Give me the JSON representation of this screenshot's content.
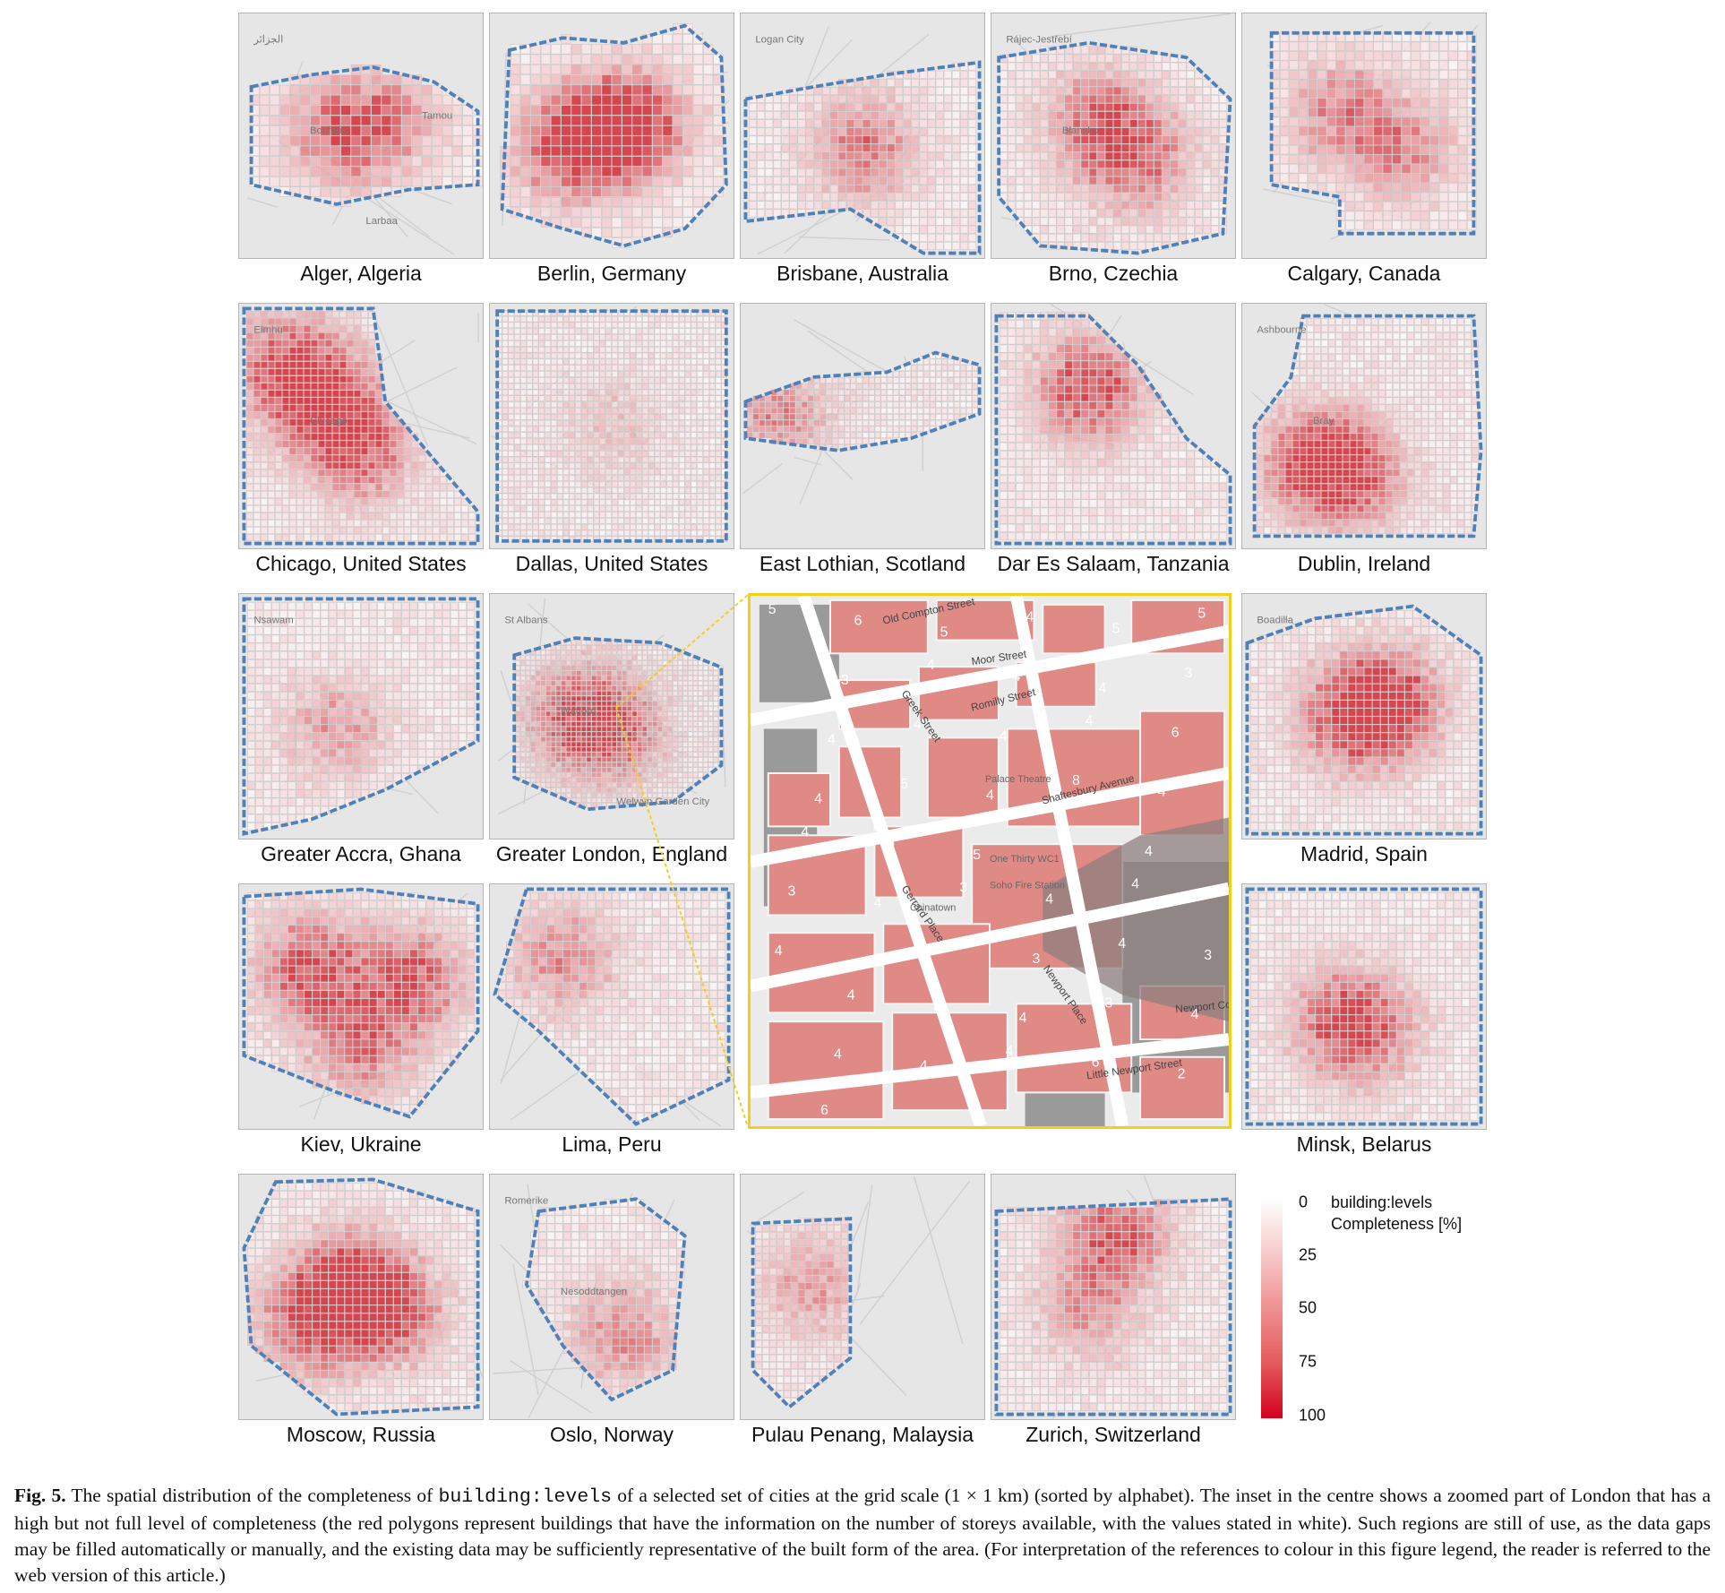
{
  "panels": [
    {
      "id": "alger",
      "caption": "Alger, Algeria",
      "map_labels": [
        "الجزائر",
        "Boufarik",
        "Larbaa",
        "Tamou"
      ]
    },
    {
      "id": "berlin",
      "caption": "Berlin, Germany",
      "map_labels": []
    },
    {
      "id": "brisbane",
      "caption": "Brisbane, Australia",
      "map_labels": [
        "Logan City"
      ]
    },
    {
      "id": "brno",
      "caption": "Brno, Czechia",
      "map_labels": [
        "Rájec-Jestřebí",
        "Blansko"
      ]
    },
    {
      "id": "calgary",
      "caption": "Calgary, Canada",
      "map_labels": []
    },
    {
      "id": "chicago",
      "caption": "Chicago, United States",
      "map_labels": [
        "Elmhu",
        "Chicago"
      ]
    },
    {
      "id": "dallas",
      "caption": "Dallas, United States",
      "map_labels": []
    },
    {
      "id": "eastlothian",
      "caption": "East Lothian, Scotland",
      "map_labels": []
    },
    {
      "id": "dar",
      "caption": "Dar Es Salaam, Tanzania",
      "map_labels": []
    },
    {
      "id": "dublin",
      "caption": "Dublin, Ireland",
      "map_labels": [
        "Ashbourne",
        "Bray"
      ]
    },
    {
      "id": "accra",
      "caption": "Greater Accra, Ghana",
      "map_labels": [
        "Nsawam"
      ]
    },
    {
      "id": "london",
      "caption": "Greater London, England",
      "map_labels": [
        "St Albans",
        "Watford",
        "Welwyn Garden City"
      ]
    },
    {
      "id": "madrid",
      "caption": "Madrid, Spain",
      "map_labels": [
        "Boadilla"
      ]
    },
    {
      "id": "kiev",
      "caption": "Kiev, Ukraine",
      "map_labels": []
    },
    {
      "id": "lima",
      "caption": "Lima, Peru",
      "map_labels": []
    },
    {
      "id": "minsk",
      "caption": "Minsk, Belarus",
      "map_labels": []
    },
    {
      "id": "moscow",
      "caption": "Moscow, Russia",
      "map_labels": []
    },
    {
      "id": "oslo",
      "caption": "Oslo, Norway",
      "map_labels": [
        "Romerike",
        "Nesoddtangen"
      ]
    },
    {
      "id": "penang",
      "caption": "Pulau Penang, Malaysia",
      "map_labels": []
    },
    {
      "id": "zurich",
      "caption": "Zurich, Switzerland",
      "map_labels": []
    }
  ],
  "inset": {
    "streets": [
      "Old Compton Street",
      "Moor Street",
      "Greek Street",
      "Romilly Street",
      "Shaftesbury Avenue",
      "Gerrard Place",
      "Newport Place",
      "Little Newport Street",
      "Newport Court"
    ],
    "places": [
      "Palace Theatre",
      "One Thirty WC1",
      "Soho Fire Station",
      "Chinatown"
    ],
    "levels": [
      "5",
      "6",
      "5",
      "4",
      "5",
      "5",
      "3",
      "4",
      "4",
      "4",
      "3",
      "4",
      "4",
      "4",
      "4",
      "6",
      "4",
      "5",
      "4",
      "8",
      "4",
      "4",
      "6",
      "5",
      "4",
      "4",
      "3",
      "4",
      "3",
      "4",
      "4",
      "4",
      "3",
      "3",
      "3",
      "4",
      "3",
      "4",
      "3",
      "4",
      "3",
      "4",
      "4",
      "4",
      "4",
      "6",
      "2",
      "6"
    ]
  },
  "legend": {
    "title_line1": "building:levels",
    "title_line2": "Completeness [%]",
    "ticks": [
      "0",
      "25",
      "50",
      "75",
      "100"
    ],
    "color_min": "#ffffff",
    "color_max": "#d4001f"
  },
  "caption": {
    "fig_label": "Fig. 5.",
    "text_before_code": "The spatial distribution of the completeness of",
    "code": "building:levels",
    "text_after_code": "of a selected set of cities at the grid scale (1 × 1 km) (sorted by alphabet). The inset in the centre shows a zoomed part of London that has a high but not full level of completeness (the red polygons represent buildings that have the information on the number of storeys available, with the values stated in white). Such regions are still of use, as the data gaps may be filled automatically or manually, and the existing data may be sufficiently representative of the built form of the area. (For interpretation of the references to colour in this figure legend, the reader is referred to the web version of this article.)"
  },
  "colors": {
    "boundary": "#4f80b8",
    "cell_fill": "#e45a5a",
    "inset_building": "#e08a86",
    "inset_frame": "#f2cf1a"
  }
}
